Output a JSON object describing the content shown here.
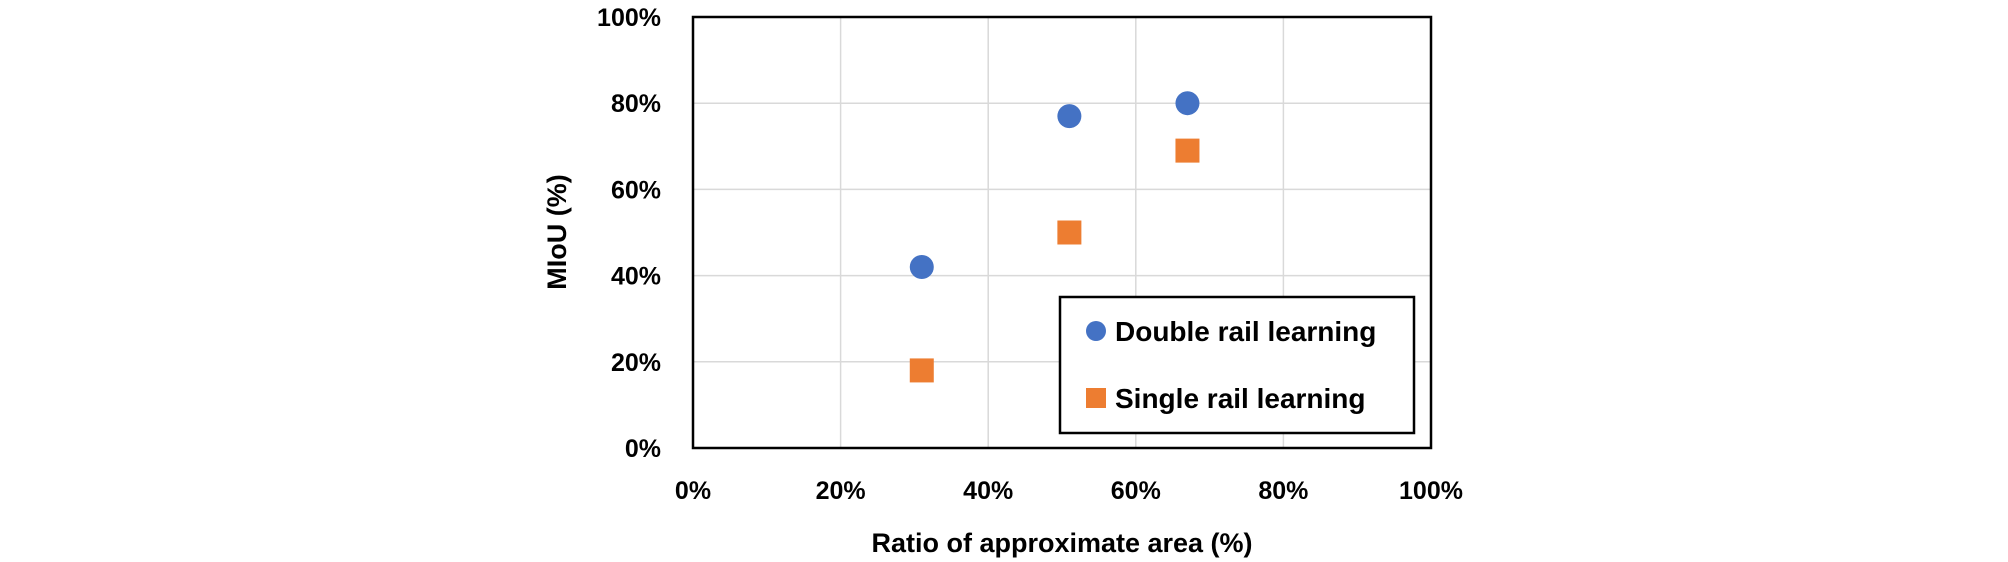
{
  "chart_data": {
    "type": "scatter",
    "title": "",
    "xlabel": "Ratio of approximate area (%)",
    "ylabel": "MIoU (%)",
    "xlim": [
      0,
      100
    ],
    "ylim": [
      0,
      100
    ],
    "x_ticks": [
      "0%",
      "20%",
      "40%",
      "60%",
      "80%",
      "100%"
    ],
    "y_ticks": [
      "0%",
      "20%",
      "40%",
      "60%",
      "80%",
      "100%"
    ],
    "grid": true,
    "legend": "bottom-right",
    "series": [
      {
        "name": "Double rail learning",
        "marker": "circle",
        "color": "#4472C4",
        "points": [
          {
            "x": 31,
            "y": 42
          },
          {
            "x": 51,
            "y": 77
          },
          {
            "x": 67,
            "y": 80
          }
        ]
      },
      {
        "name": "Single rail learning",
        "marker": "square",
        "color": "#ED7D31",
        "points": [
          {
            "x": 31,
            "y": 18
          },
          {
            "x": 51,
            "y": 50
          },
          {
            "x": 67,
            "y": 69
          }
        ]
      }
    ]
  }
}
